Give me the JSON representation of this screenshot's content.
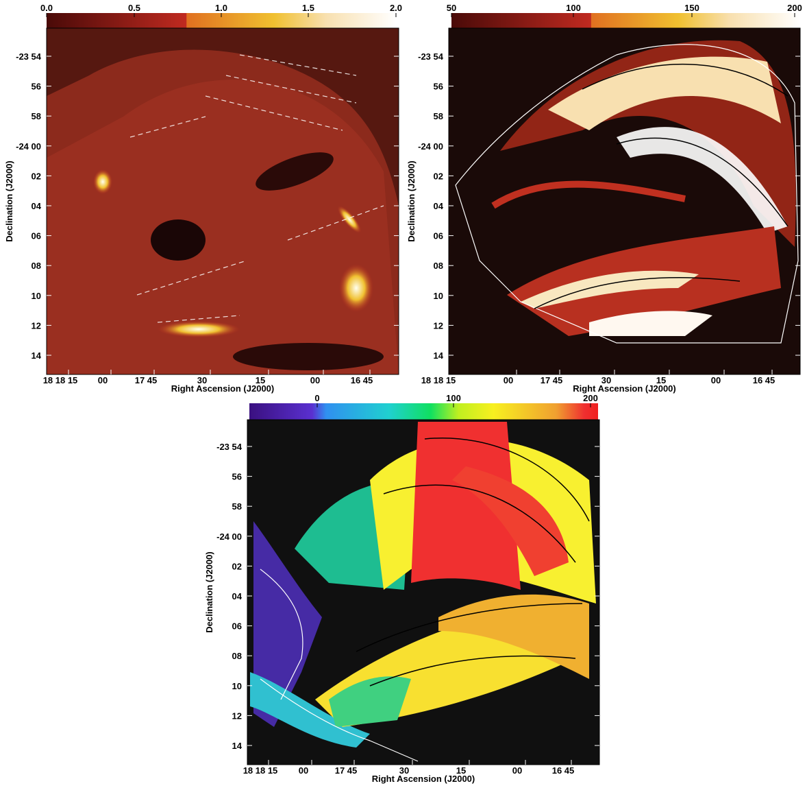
{
  "panels": [
    {
      "colorbar_ticks": [
        "0.0",
        "0.5",
        "1.0",
        "1.5",
        "2.0"
      ],
      "y_ticks": [
        "-23 54",
        "56",
        "58",
        "-24 00",
        "02",
        "04",
        "06",
        "08",
        "10",
        "12",
        "14"
      ],
      "x_ticks": [
        "18 18 15",
        "00",
        "17 45",
        "30",
        "15",
        "00",
        "16 45"
      ],
      "x_label": "Right Ascension (J2000)",
      "y_label": "Declination (J2000)"
    },
    {
      "colorbar_ticks": [
        "50",
        "100",
        "150",
        "200"
      ],
      "y_ticks": [
        "-23 54",
        "56",
        "58",
        "-24 00",
        "02",
        "04",
        "06",
        "08",
        "10",
        "12",
        "14"
      ],
      "x_ticks": [
        "18 18 15",
        "00",
        "17 45",
        "30",
        "15",
        "00",
        "16 45"
      ],
      "x_label": "Right Ascension (J2000)",
      "y_label": "Declination (J2000)"
    },
    {
      "colorbar_ticks": [
        "0",
        "100",
        "200"
      ],
      "y_ticks": [
        "-23 54",
        "56",
        "58",
        "-24 00",
        "02",
        "04",
        "06",
        "08",
        "10",
        "12",
        "14"
      ],
      "x_ticks": [
        "18 18 15",
        "00",
        "17 45",
        "30",
        "15",
        "00",
        "16 45"
      ],
      "x_label": "Right Ascension (J2000)",
      "y_label": "Declination (J2000)"
    }
  ]
}
